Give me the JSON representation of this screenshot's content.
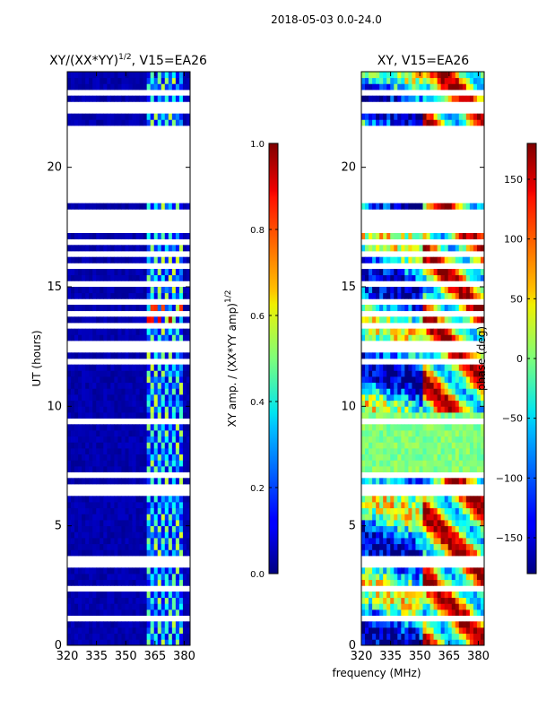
{
  "figure": {
    "suptitle": "2018-05-03 0.0-24.0",
    "xlabel_shared": "frequency (MHz)"
  },
  "chart_data": [
    {
      "type": "heatmap",
      "title_main": "XY/(XX*YY)",
      "title_sup": "1/2",
      "title_tail": ", V15=EA26",
      "ylabel": "UT (hours)",
      "xlim": [
        320,
        383
      ],
      "ylim": [
        0,
        24
      ],
      "xticks": [
        320,
        335,
        350,
        365,
        380
      ],
      "yticks": [
        0,
        5,
        10,
        15,
        20
      ],
      "ytick_labels": [
        "0",
        "5",
        "10",
        "15",
        "20"
      ],
      "flagged_ut_ranges": [
        [
          18.5,
          21.8
        ],
        [
          23.1,
          23.3
        ],
        [
          22.3,
          22.5
        ]
      ],
      "colorbar": {
        "label_main": "XY amp. / (XX*YY amp)",
        "label_sup": "1/2",
        "range": [
          0.0,
          1.0
        ],
        "ticks": [
          0.0,
          0.2,
          0.4,
          0.6,
          0.8,
          1.0
        ],
        "tick_labels": [
          "0.0",
          "0.2",
          "0.4",
          "0.6",
          "0.8",
          "1.0"
        ],
        "colormap": "jet"
      }
    },
    {
      "type": "heatmap",
      "title": "XY, V15=EA26",
      "xlim": [
        320,
        383
      ],
      "ylim": [
        0,
        24
      ],
      "xticks": [
        320,
        335,
        350,
        365,
        380
      ],
      "yticks": [
        0,
        5,
        10,
        15,
        20
      ],
      "ytick_labels": [
        "0",
        "5",
        "10",
        "15",
        "20"
      ],
      "flagged_ut_ranges": [
        [
          18.5,
          21.8
        ],
        [
          23.1,
          23.3
        ],
        [
          22.3,
          22.5
        ]
      ],
      "colorbar": {
        "label": "phase (deg)",
        "range": [
          -180,
          180
        ],
        "ticks": [
          -150,
          -100,
          -50,
          0,
          50,
          100,
          150
        ],
        "tick_labels": [
          "−150",
          "−100",
          "−50",
          "0",
          "50",
          "100",
          "150"
        ],
        "colormap": "jet"
      }
    }
  ]
}
